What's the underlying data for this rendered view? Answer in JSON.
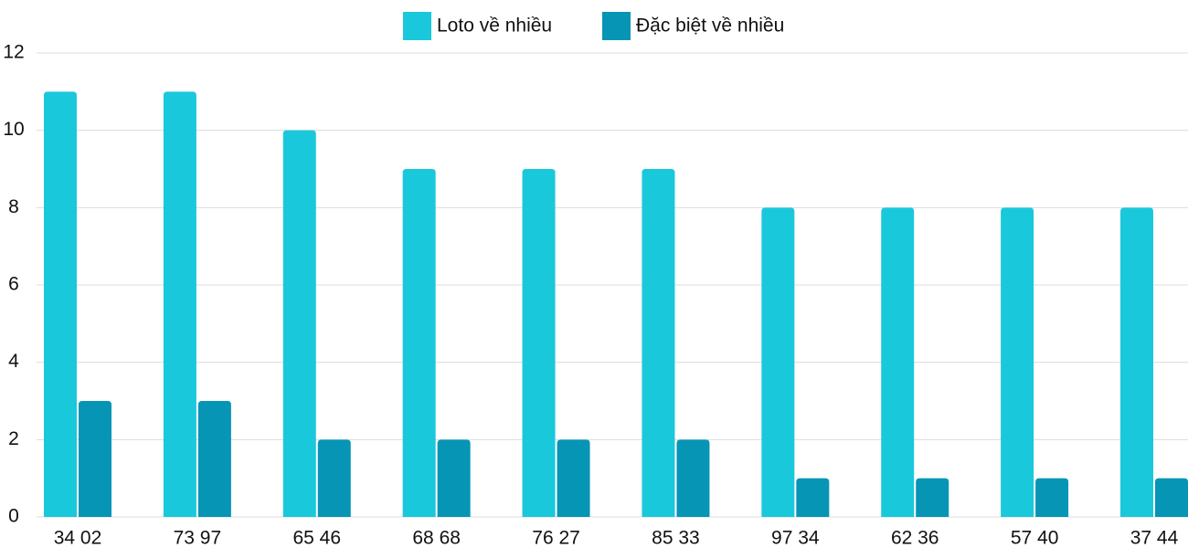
{
  "chart_data": {
    "type": "bar",
    "categories": [
      "34 02",
      "73 97",
      "65 46",
      "68 68",
      "76 27",
      "85 33",
      "97 34",
      "62 36",
      "57 40",
      "37 44"
    ],
    "series": [
      {
        "name": "Loto về nhiều",
        "color": "#1ac8db",
        "values": [
          11,
          11,
          10,
          9,
          9,
          9,
          8,
          8,
          8,
          8
        ]
      },
      {
        "name": "Đặc biệt về nhiều",
        "color": "#0795b5",
        "values": [
          3,
          3,
          2,
          2,
          2,
          2,
          1,
          1,
          1,
          1
        ]
      }
    ],
    "ylim": [
      0,
      12
    ],
    "yticks": [
      0,
      2,
      4,
      6,
      8,
      10,
      12
    ],
    "grid": true,
    "legend": "top"
  }
}
